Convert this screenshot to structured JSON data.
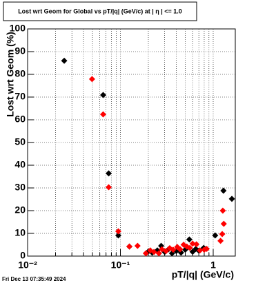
{
  "chart_data": {
    "type": "scatter",
    "title": "Lost wrt Geom for Global vs pT/|q| (GeV/c) at |  η  | <= 1.0",
    "x_label": "pT/|q| (GeV/c)",
    "y_label": "Lost wrt Geom (%)",
    "footer": "Fri Dec 13 07:35:49 2024",
    "log_x": true,
    "grid": true,
    "xlim": [
      0.01,
      1.73
    ],
    "ylim": [
      0,
      100
    ],
    "xticks": [
      {
        "value": 0.01,
        "label": "10⁻²"
      },
      {
        "value": 0.1,
        "label": "10⁻¹"
      },
      1
    ],
    "xminorticks": [
      0.02,
      0.03,
      0.04,
      0.05,
      0.06,
      0.07,
      0.08,
      0.09,
      0.2,
      0.3,
      0.4,
      0.5,
      0.6,
      0.7,
      0.8,
      0.9
    ],
    "yticks": [
      0,
      10,
      20,
      30,
      40,
      50,
      60,
      70,
      80,
      90,
      100
    ],
    "series": [
      {
        "name": "black",
        "color": "#000000",
        "x": [
          0.0248,
          0.0652,
          0.0748,
          0.095,
          0.125,
          0.2,
          0.22,
          0.25,
          0.275,
          0.3,
          0.33,
          0.36,
          0.4,
          0.45,
          0.5,
          0.553,
          0.6,
          0.65,
          0.7,
          0.79,
          1.05,
          1.29,
          1.59
        ],
        "values": [
          86,
          70.9,
          36.4,
          9.1,
          4.2,
          2,
          1.5,
          2.5,
          4.5,
          1.8,
          3,
          1.2,
          2.2,
          1.5,
          2.8,
          7.3,
          1.9,
          3.2,
          2.4,
          3.6,
          9.1,
          28.8,
          25.2
        ]
      },
      {
        "name": "red",
        "color": "#ff0000",
        "x": [
          0.0495,
          0.0652,
          0.0748,
          0.095,
          0.125,
          0.153,
          0.188,
          0.21,
          0.23,
          0.26,
          0.28,
          0.31,
          0.34,
          0.37,
          0.41,
          0.44,
          0.48,
          0.52,
          0.56,
          0.6,
          0.66,
          0.72,
          0.8,
          0.85,
          1.2,
          1.25,
          1.27,
          1.3
        ],
        "values": [
          77.9,
          62.4,
          30.3,
          10.9,
          4.2,
          4.5,
          1.2,
          2.5,
          1.8,
          1.2,
          3,
          2.2,
          3.5,
          2.8,
          4,
          3,
          5,
          4.2,
          3.6,
          5.5,
          5.2,
          2.5,
          2.8,
          3.2,
          6.7,
          9.7,
          20,
          14.2
        ]
      }
    ]
  }
}
